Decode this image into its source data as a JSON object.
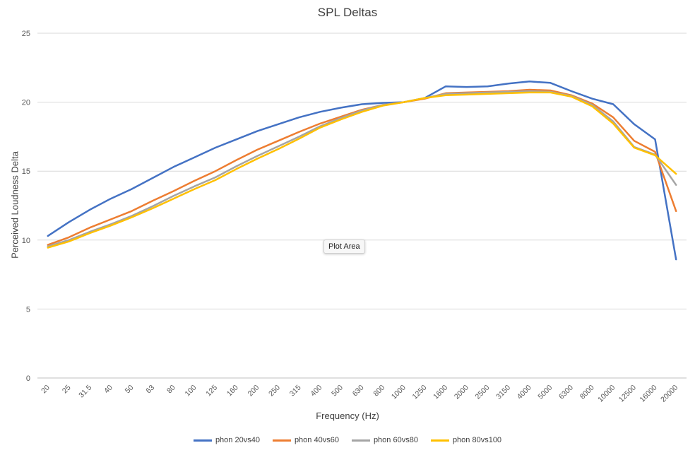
{
  "chart_data": {
    "type": "line",
    "title": "SPL Deltas",
    "xlabel": "Frequency (Hz)",
    "ylabel": "Perceived Loudness Delta",
    "ylim": [
      0,
      25
    ],
    "yticks": [
      0,
      5,
      10,
      15,
      20,
      25
    ],
    "grid": true,
    "legend_position": "bottom",
    "tooltip": "Plot Area",
    "categories": [
      "20",
      "25",
      "31.5",
      "40",
      "50",
      "63",
      "80",
      "100",
      "125",
      "160",
      "200",
      "250",
      "315",
      "400",
      "500",
      "630",
      "800",
      "1000",
      "1250",
      "1600",
      "2000",
      "2500",
      "3150",
      "4000",
      "5000",
      "6300",
      "8000",
      "10000",
      "12500",
      "16000",
      "20000"
    ],
    "series": [
      {
        "name": "phon 20vs40",
        "color": "#4472C4",
        "values": [
          10.3,
          11.3,
          12.2,
          13.0,
          13.7,
          14.5,
          15.3,
          16.0,
          16.7,
          17.3,
          17.9,
          18.4,
          18.9,
          19.3,
          19.6,
          19.85,
          19.95,
          20.0,
          20.3,
          21.15,
          21.1,
          21.15,
          21.35,
          21.5,
          21.4,
          20.8,
          20.25,
          19.85,
          18.4,
          17.3,
          8.6
        ]
      },
      {
        "name": "phon 40vs60",
        "color": "#ED7D31",
        "values": [
          9.65,
          10.2,
          10.9,
          11.5,
          12.1,
          12.85,
          13.55,
          14.3,
          15.0,
          15.8,
          16.55,
          17.2,
          17.85,
          18.45,
          18.95,
          19.45,
          19.8,
          20.0,
          20.25,
          20.65,
          20.7,
          20.75,
          20.8,
          20.9,
          20.85,
          20.5,
          19.9,
          18.9,
          17.2,
          16.4,
          12.1
        ]
      },
      {
        "name": "phon 60vs80",
        "color": "#A5A5A5",
        "values": [
          9.55,
          10.0,
          10.6,
          11.15,
          11.75,
          12.45,
          13.2,
          13.9,
          14.55,
          15.35,
          16.1,
          16.8,
          17.5,
          18.25,
          18.85,
          19.4,
          19.8,
          20.0,
          20.3,
          20.6,
          20.65,
          20.7,
          20.75,
          20.8,
          20.75,
          20.45,
          19.8,
          18.6,
          16.75,
          16.2,
          14.0
        ]
      },
      {
        "name": "phon 80vs100",
        "color": "#FFC000",
        "values": [
          9.45,
          9.9,
          10.5,
          11.05,
          11.65,
          12.3,
          13.0,
          13.7,
          14.35,
          15.15,
          15.9,
          16.6,
          17.35,
          18.15,
          18.75,
          19.3,
          19.75,
          20.0,
          20.3,
          20.5,
          20.55,
          20.6,
          20.65,
          20.7,
          20.7,
          20.4,
          19.7,
          18.45,
          16.7,
          16.15,
          14.8
        ]
      }
    ]
  }
}
